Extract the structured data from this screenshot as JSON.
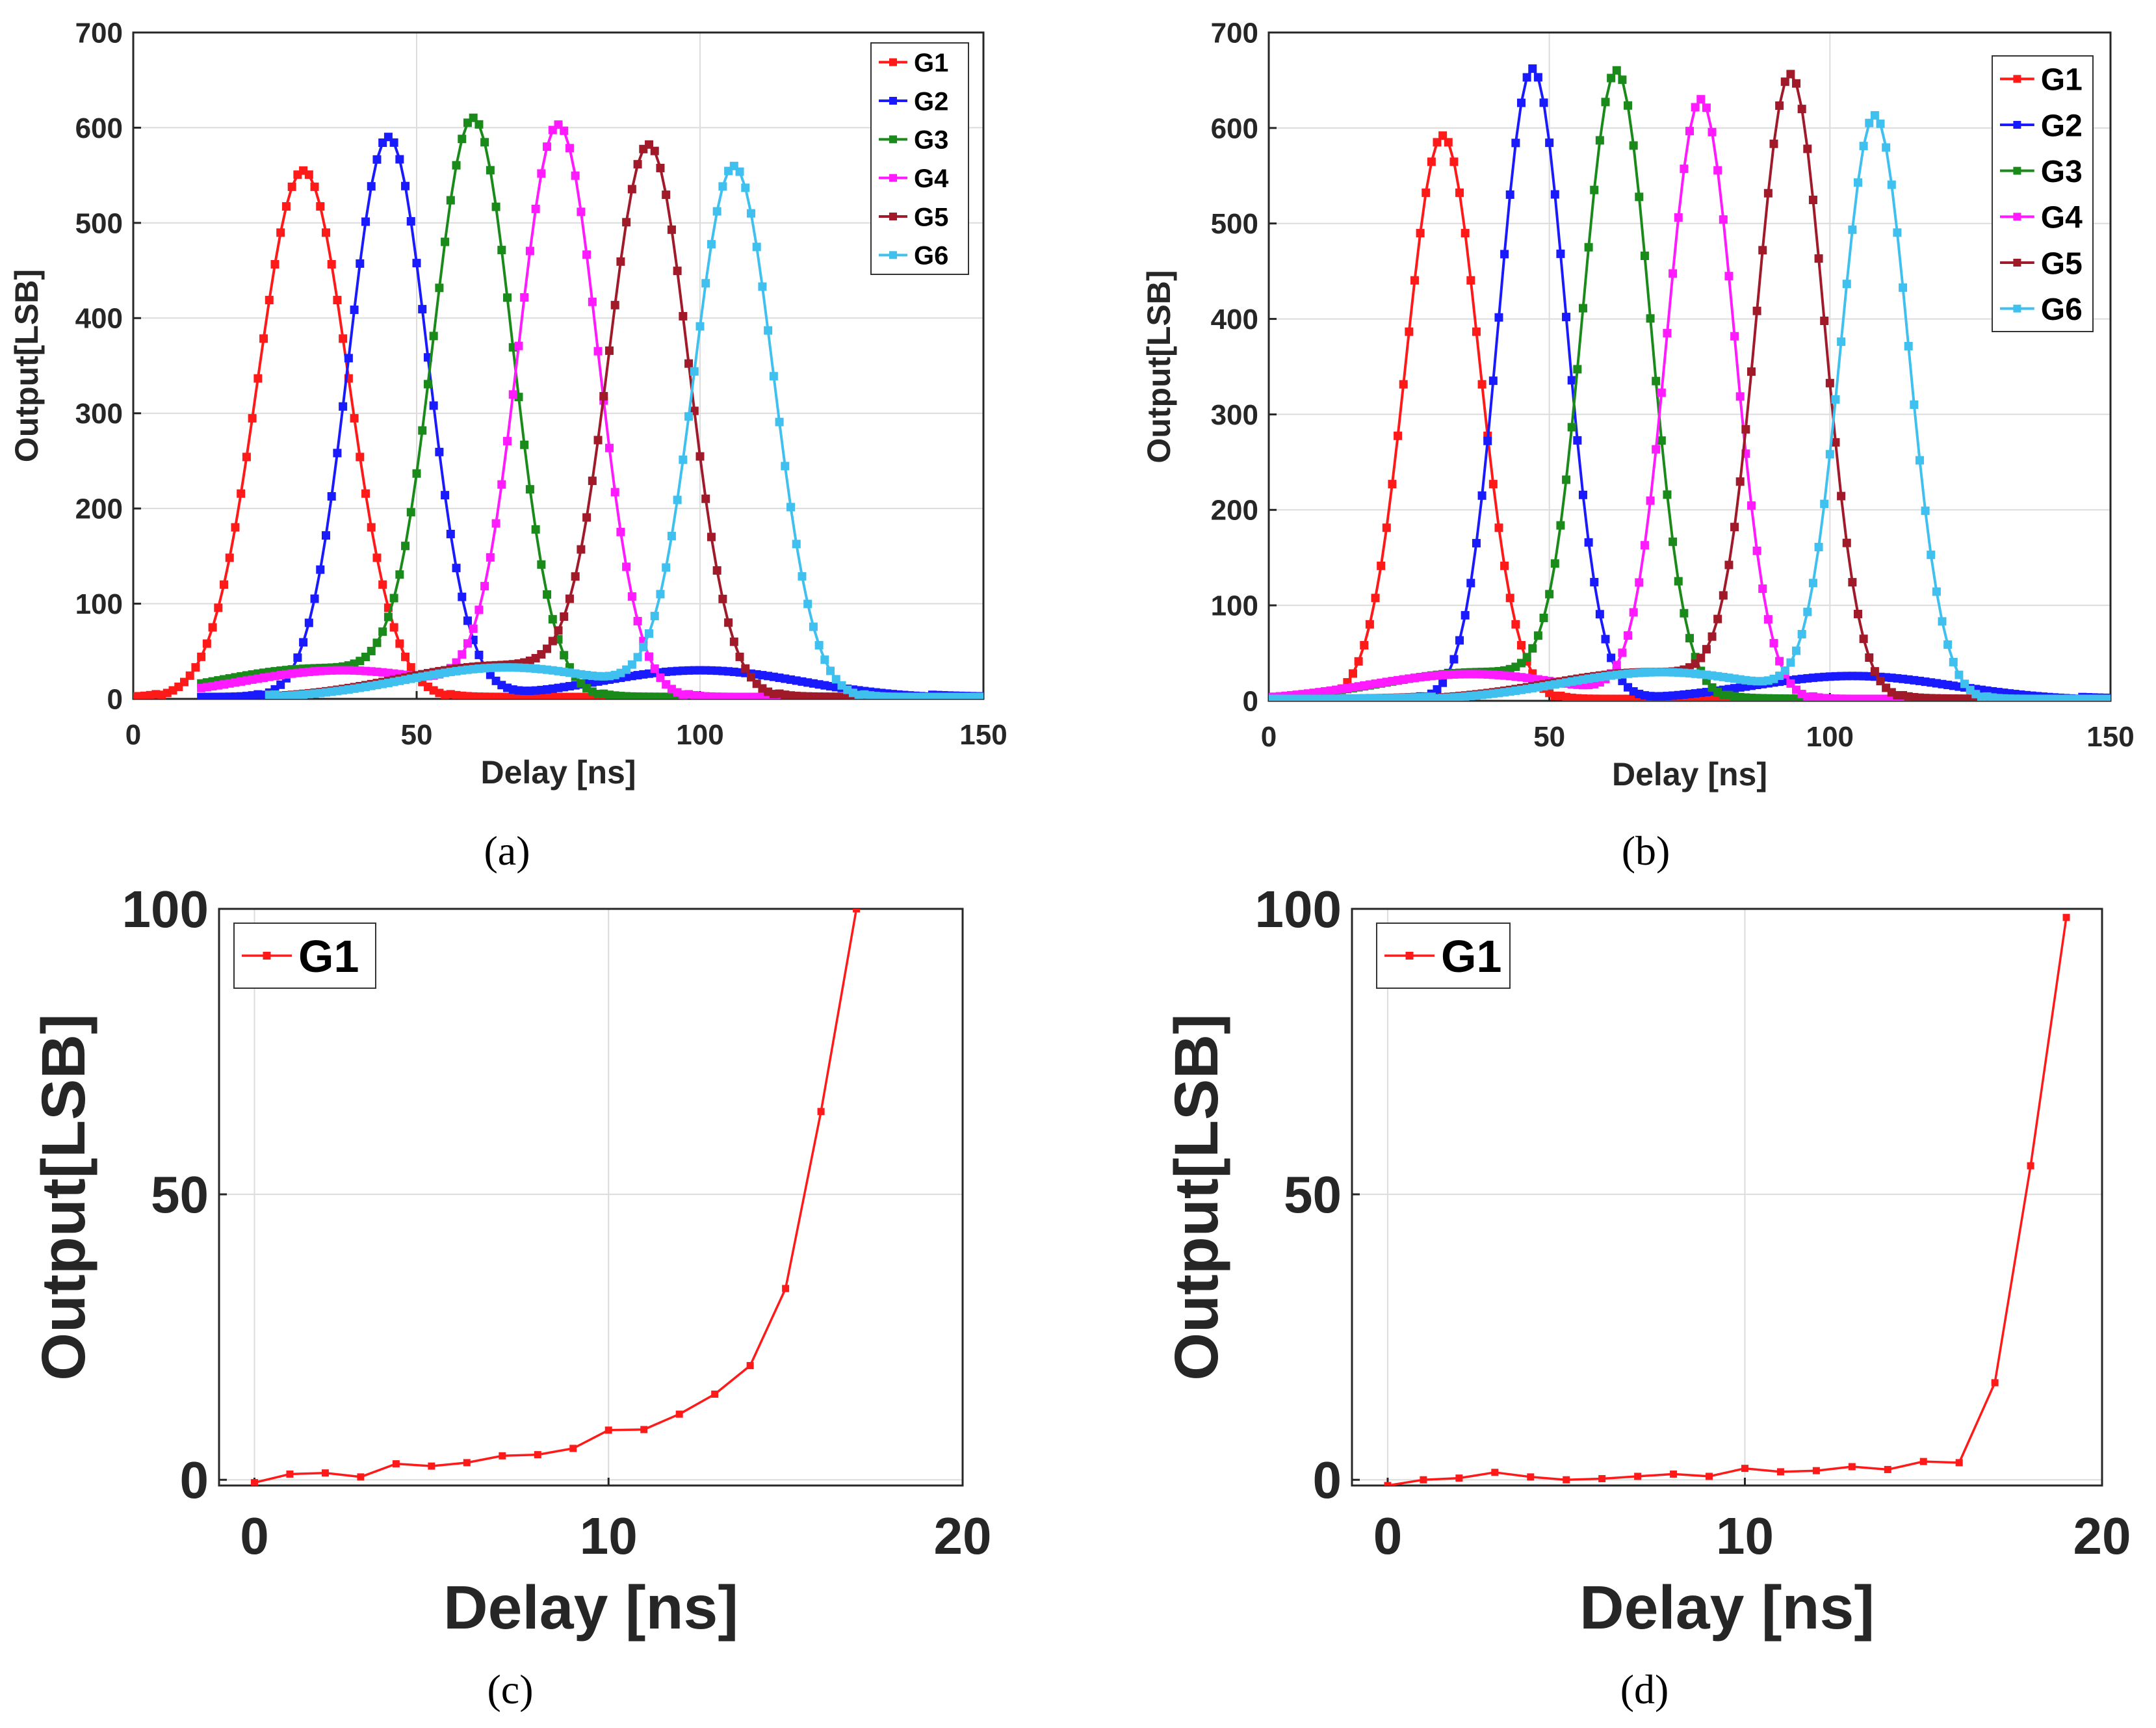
{
  "colors": {
    "G1": "#ff1a1a",
    "G2": "#1a1aff",
    "G3": "#1a8a1a",
    "G4": "#ff1aff",
    "G5": "#a01a2a",
    "G6": "#40c0ee",
    "grid": "#dcdcdc",
    "axis": "#262626"
  },
  "chart_data": [
    {
      "id": "a",
      "caption": "(a)",
      "type": "line",
      "xlabel": "Delay [ns]",
      "ylabel": "Output[LSB]",
      "xlim": [
        0,
        150
      ],
      "ylim": [
        0,
        700
      ],
      "xticks": [
        0,
        50,
        100,
        150
      ],
      "yticks": [
        0,
        100,
        200,
        300,
        400,
        500,
        600,
        700
      ],
      "legend": "top-right",
      "series": [
        {
          "name": "G1",
          "peak_x": 30,
          "peak_y": 555,
          "width": 8,
          "start": 0,
          "end": 150,
          "hump_x": null,
          "hump_y": 0
        },
        {
          "name": "G2",
          "peak_x": 45,
          "peak_y": 590,
          "width": 7,
          "start": 12,
          "end": 150,
          "hump_x": 100,
          "hump_y": 30
        },
        {
          "name": "G3",
          "peak_x": 60,
          "peak_y": 600,
          "width": 7,
          "start": 12,
          "end": 150,
          "hump_x": 33,
          "hump_y": 32
        },
        {
          "name": "G4",
          "peak_x": 75,
          "peak_y": 600,
          "width": 7,
          "start": 12,
          "end": 150,
          "hump_x": 37,
          "hump_y": 30
        },
        {
          "name": "G5",
          "peak_x": 91,
          "peak_y": 570,
          "width": 7,
          "start": 24,
          "end": 150,
          "hump_x": 65,
          "hump_y": 35
        },
        {
          "name": "G6",
          "peak_x": 106,
          "peak_y": 557,
          "width": 7,
          "start": 24,
          "end": 150,
          "hump_x": 66,
          "hump_y": 33
        }
      ]
    },
    {
      "id": "b",
      "caption": "(b)",
      "type": "line",
      "xlabel": "Delay [ns]",
      "ylabel": "Output[LSB]",
      "xlim": [
        0,
        150
      ],
      "ylim": [
        0,
        700
      ],
      "xticks": [
        0,
        50,
        100,
        150
      ],
      "yticks": [
        0,
        100,
        200,
        300,
        400,
        500,
        600,
        700
      ],
      "legend": "top-right",
      "series": [
        {
          "name": "G1",
          "peak_x": 31,
          "peak_y": 592,
          "width": 6.5,
          "start": 0,
          "end": 150,
          "hump_x": null,
          "hump_y": 0
        },
        {
          "name": "G2",
          "peak_x": 47,
          "peak_y": 662,
          "width": 6,
          "start": 0,
          "end": 150,
          "hump_x": 104,
          "hump_y": 26
        },
        {
          "name": "G3",
          "peak_x": 62,
          "peak_y": 648,
          "width": 6,
          "start": 0,
          "end": 150,
          "hump_x": 38,
          "hump_y": 30
        },
        {
          "name": "G4",
          "peak_x": 77,
          "peak_y": 628,
          "width": 6,
          "start": 0,
          "end": 150,
          "hump_x": 36,
          "hump_y": 28
        },
        {
          "name": "G5",
          "peak_x": 93,
          "peak_y": 645,
          "width": 6,
          "start": 0,
          "end": 150,
          "hump_x": 68,
          "hump_y": 30
        },
        {
          "name": "G6",
          "peak_x": 108,
          "peak_y": 610,
          "width": 6,
          "start": 0,
          "end": 150,
          "hump_x": 70,
          "hump_y": 30
        }
      ]
    },
    {
      "id": "c",
      "caption": "(c)",
      "type": "line",
      "xlabel": "Delay [ns]",
      "ylabel": "Output[LSB]",
      "xlim": [
        -1,
        20
      ],
      "ylim": [
        -1,
        100
      ],
      "xticks": [
        0,
        10,
        20
      ],
      "yticks": [
        0,
        50,
        100
      ],
      "legend": "top-left",
      "series": [
        {
          "name": "G1",
          "x": [
            0,
            1,
            2,
            3,
            4,
            5,
            6,
            7,
            8,
            9,
            10,
            11,
            12,
            13,
            14,
            15,
            16,
            17
          ],
          "y": [
            -0.5,
            1,
            1.2,
            0.5,
            2.8,
            2.4,
            3,
            4.2,
            4.4,
            5.5,
            8.7,
            8.8,
            11.5,
            15,
            20,
            33.5,
            64.5,
            100
          ]
        }
      ]
    },
    {
      "id": "d",
      "caption": "(d)",
      "type": "line",
      "xlabel": "Delay [ns]",
      "ylabel": "Output[LSB]",
      "xlim": [
        -1,
        20
      ],
      "ylim": [
        -1,
        100
      ],
      "xticks": [
        0,
        10,
        20
      ],
      "yticks": [
        0,
        50,
        100
      ],
      "legend": "top-left",
      "series": [
        {
          "name": "G1",
          "x": [
            0,
            1,
            2,
            3,
            4,
            5,
            6,
            7,
            8,
            9,
            10,
            11,
            12,
            13,
            14,
            15,
            16,
            17,
            18,
            19
          ],
          "y": [
            -1,
            0,
            0.3,
            1.3,
            0.5,
            0,
            0.2,
            0.6,
            1,
            0.6,
            2,
            1.4,
            1.6,
            2.3,
            1.8,
            3.2,
            3,
            17,
            55,
            98.5
          ]
        }
      ]
    }
  ]
}
